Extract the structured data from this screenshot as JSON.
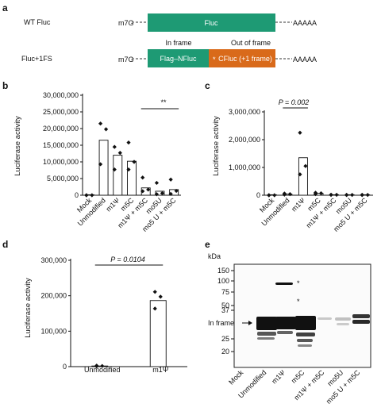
{
  "panels": {
    "a": {
      "label": "a",
      "wt_label": "WT Fluc",
      "cap": "m7G",
      "wt_box": "Fluc",
      "polya": "AAAAA",
      "in_frame": "In frame",
      "out_of_frame": "Out of frame",
      "fs_label": "Fluc+1FS",
      "fs_box1": "Flag–NFluc",
      "fs_box2": "CFluc (+1 frame)",
      "star": "*",
      "colors": {
        "fluc": "#1e9a74",
        "cfluc": "#d96a1a"
      }
    },
    "b": {
      "label": "b"
    },
    "c": {
      "label": "c"
    },
    "d": {
      "label": "d"
    },
    "e": {
      "label": "e",
      "kda": "kDa",
      "markers": [
        "150",
        "100",
        "75",
        "50",
        "37",
        "25",
        "20"
      ],
      "in_frame": "In frame",
      "lanes": [
        "Mock",
        "Unmodified",
        "m1Ψ",
        "m5C",
        "m1Ψ + m5C",
        "mo5U",
        "mo5 U + m5C"
      ],
      "stars": [
        "*",
        "*"
      ]
    }
  },
  "chart_data": [
    {
      "panel": "b",
      "type": "bar",
      "ylabel": "Luciferase activity",
      "ylim": [
        0,
        30000000
      ],
      "yticks": [
        "0",
        "5,000,000",
        "10,000,000",
        "15,000,000",
        "20,000,000",
        "25,000,000",
        "30,000,000"
      ],
      "categories": [
        "Mock",
        "Unmodified",
        "m1Ψ",
        "m5C",
        "m1Ψ + m5C",
        "mo5U",
        "mo5 U + m5C"
      ],
      "values": [
        0,
        16500000,
        12000000,
        10200000,
        2200000,
        1200000,
        1700000
      ],
      "points": [
        [
          0,
          0,
          0
        ],
        [
          21500000,
          19800000,
          9300000
        ],
        [
          14500000,
          12700000,
          7700000
        ],
        [
          15800000,
          10000000,
          7700000
        ],
        [
          5300000,
          1700000,
          1200000
        ],
        [
          3700000,
          600000,
          300000
        ],
        [
          4700000,
          1300000,
          400000
        ]
      ],
      "annotation": "**"
    },
    {
      "panel": "c",
      "type": "bar",
      "ylabel": "Luciferase activity",
      "ylim": [
        0,
        3000000
      ],
      "yticks": [
        "0",
        "1,000,000",
        "2,000,000",
        "3,000,000"
      ],
      "categories": [
        "Mock",
        "Unmodified",
        "m1Ψ",
        "m5C",
        "m1Ψ + m5C",
        "mo5U",
        "mo5 U + m5C"
      ],
      "values": [
        0,
        40000,
        1350000,
        70000,
        15000,
        10000,
        10000
      ],
      "points": [
        [
          0,
          0,
          0
        ],
        [
          60000,
          40000,
          20000
        ],
        [
          2250000,
          1050000,
          750000
        ],
        [
          90000,
          70000,
          40000
        ],
        [
          20000,
          15000,
          10000
        ],
        [
          15000,
          10000,
          5000
        ],
        [
          15000,
          10000,
          5000
        ]
      ],
      "annotation": "P = 0.002"
    },
    {
      "panel": "d",
      "type": "bar",
      "ylabel": "Luciferase activity",
      "ylim": [
        0,
        330000
      ],
      "yticks": [
        "0",
        "100,000",
        "200,000",
        "300,000"
      ],
      "categories": [
        "Unmodified",
        "m1Ψ"
      ],
      "values": [
        2000,
        205000
      ],
      "points": [
        [
          3000,
          2000,
          1000
        ],
        [
          232000,
          217000,
          180000
        ]
      ],
      "annotation": "P = 0.0104"
    }
  ]
}
